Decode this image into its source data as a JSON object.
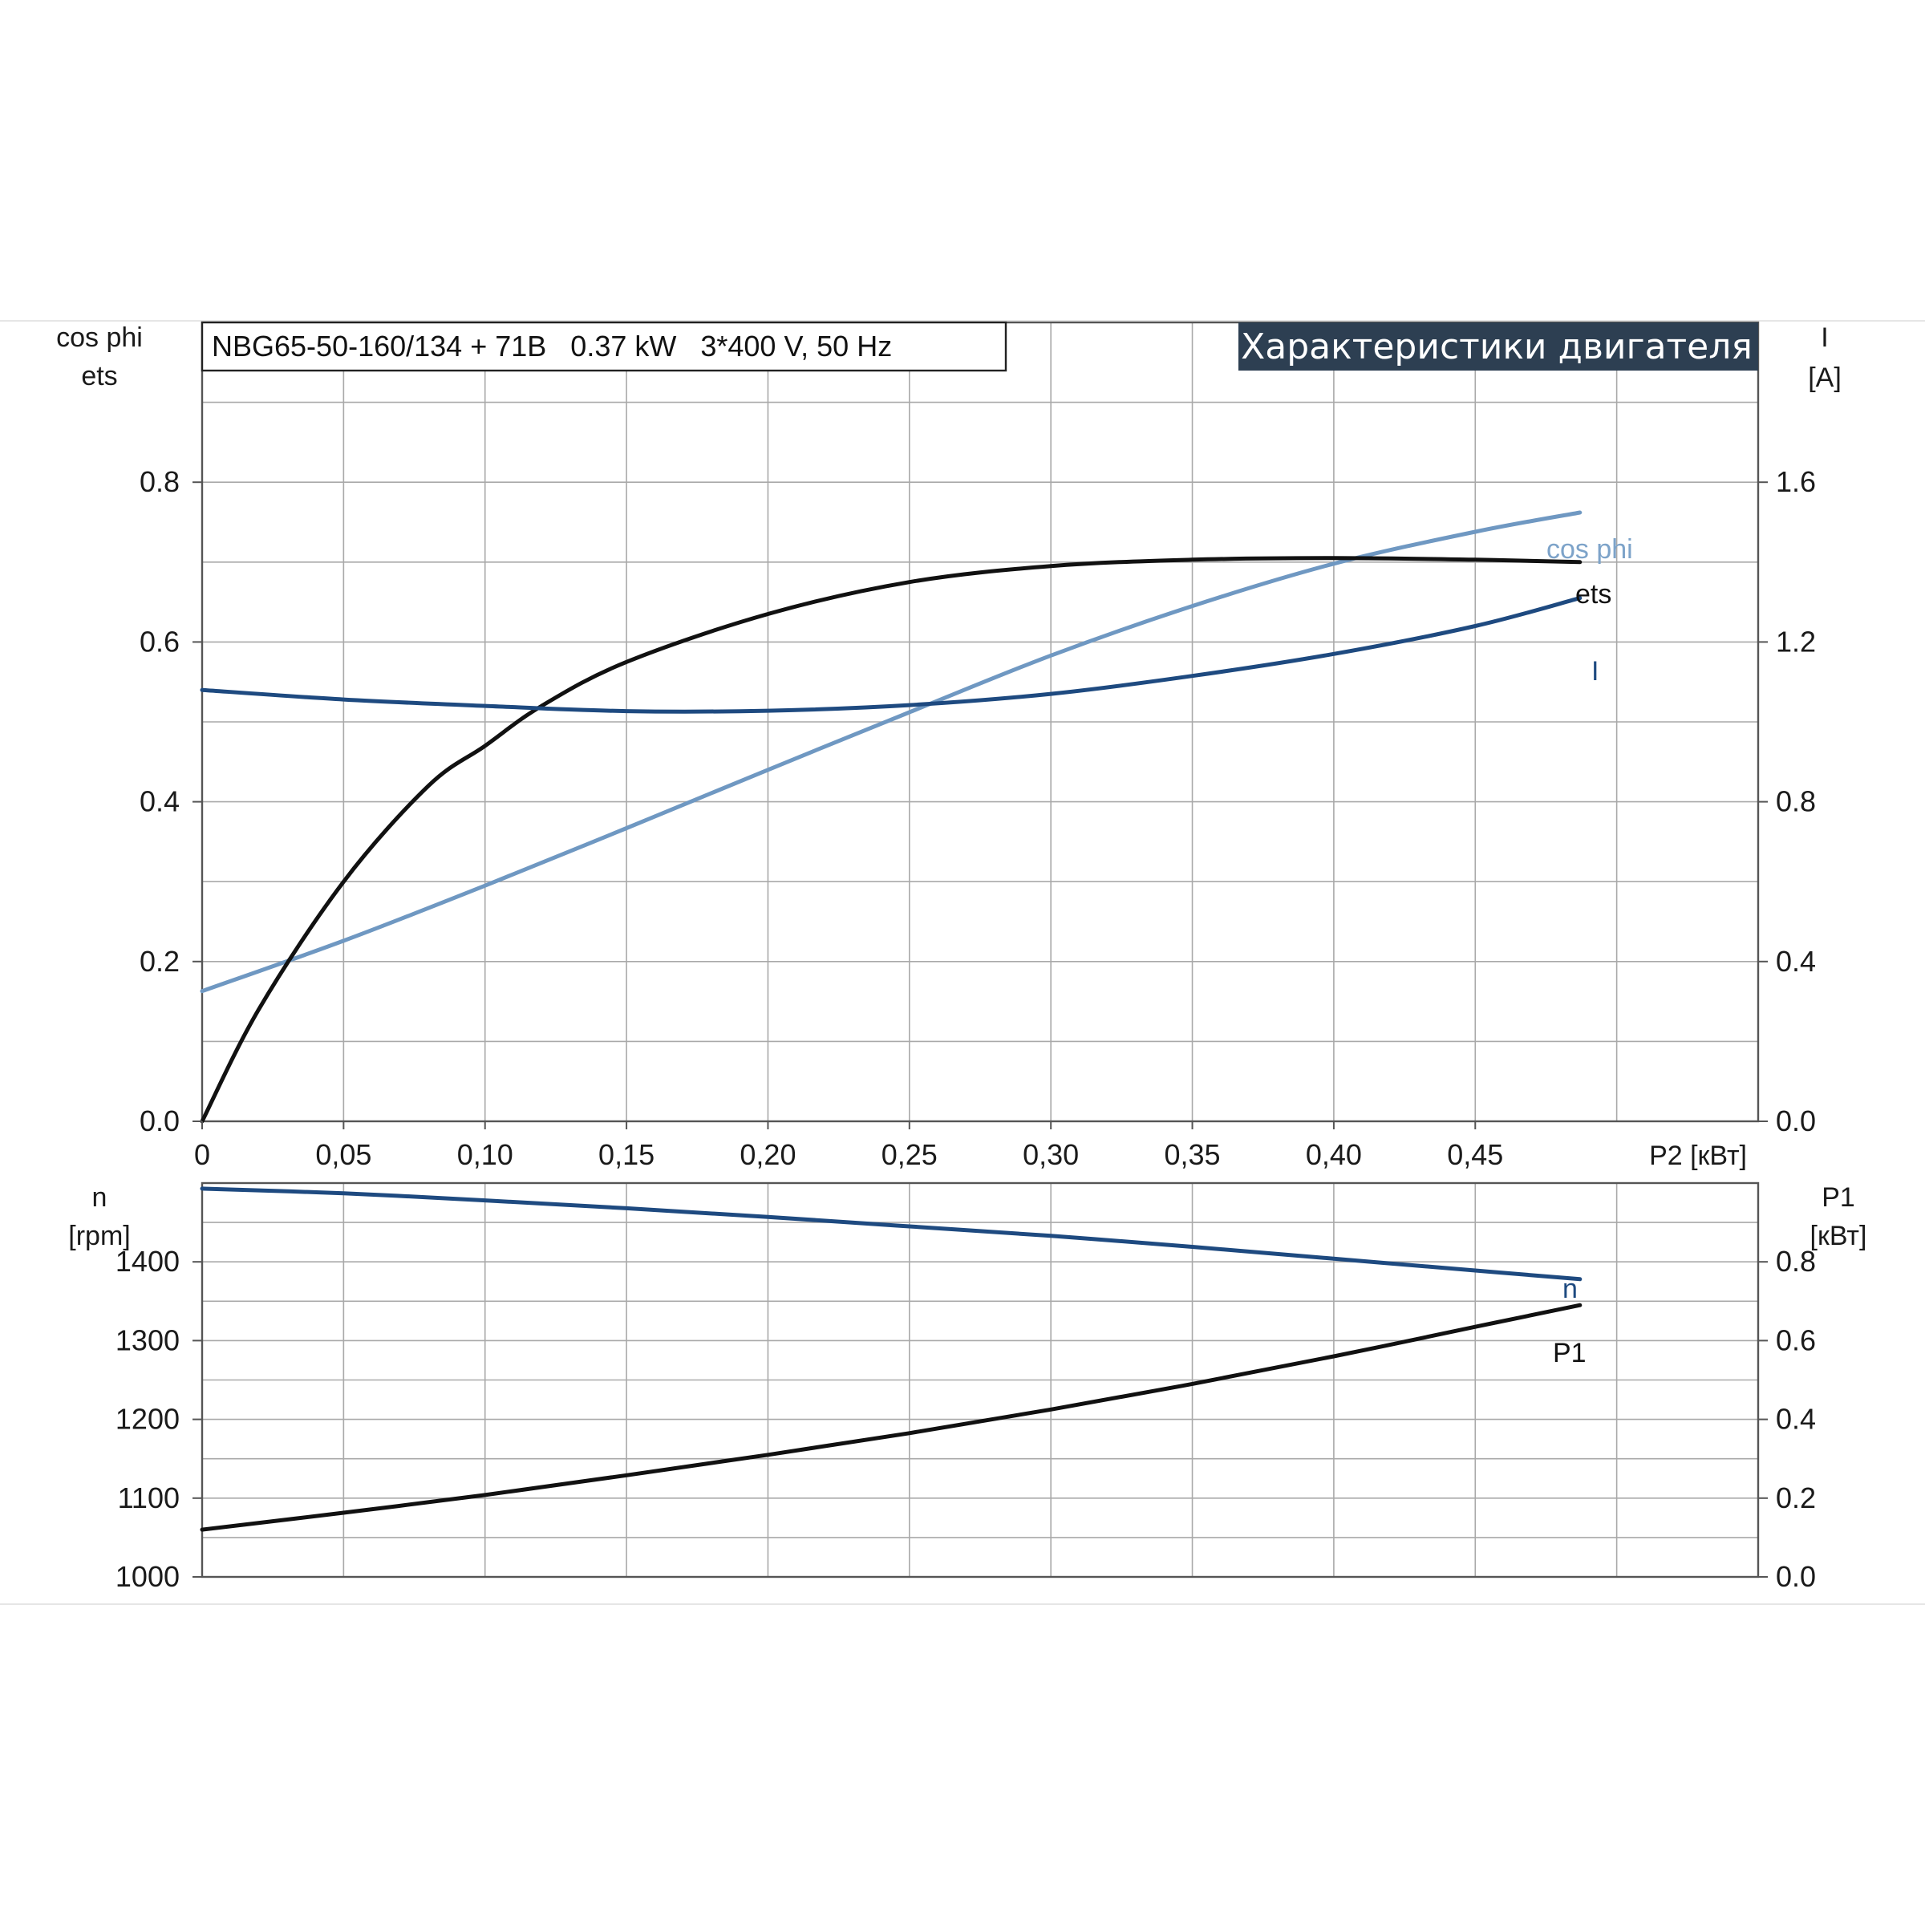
{
  "model_label": "NBG65-50-160/134 + 71B   0.37 kW   3*400 V, 50 Hz",
  "title": "Характеристики двигателя",
  "chart_data": [
    {
      "type": "line",
      "panel": "top",
      "xlabel": "P2 [кВт]",
      "x_ticks": [
        "0",
        "0,05",
        "0,10",
        "0,15",
        "0,20",
        "0,25",
        "0,30",
        "0,35",
        "0,40",
        "0,45"
      ],
      "xlim": [
        0,
        0.55
      ],
      "ylabel_left": [
        "cos phi",
        "ets"
      ],
      "ylim_left": [
        0,
        1.0
      ],
      "y_ticks_left": [
        "0.0",
        "0.2",
        "0.4",
        "0.6",
        "0.8"
      ],
      "ylabel_right": [
        "I",
        "[A]"
      ],
      "ylim_right": [
        0,
        2.0
      ],
      "y_ticks_right": [
        "0.0",
        "0.4",
        "0.8",
        "1.2",
        "1.6"
      ],
      "grid": true,
      "series": [
        {
          "name": "cos phi",
          "axis": "left",
          "color": "#6f98c2",
          "x": [
            0,
            0.05,
            0.1,
            0.15,
            0.2,
            0.25,
            0.3,
            0.35,
            0.4,
            0.45,
            0.487
          ],
          "y": [
            0.163,
            0.226,
            0.295,
            0.367,
            0.44,
            0.512,
            0.583,
            0.645,
            0.698,
            0.738,
            0.762
          ]
        },
        {
          "name": "ets",
          "axis": "left",
          "color": "#111111",
          "x": [
            0,
            0.02,
            0.05,
            0.08,
            0.1,
            0.12,
            0.15,
            0.2,
            0.25,
            0.3,
            0.35,
            0.4,
            0.45,
            0.487
          ],
          "y": [
            0.0,
            0.14,
            0.3,
            0.42,
            0.47,
            0.52,
            0.575,
            0.635,
            0.675,
            0.695,
            0.703,
            0.705,
            0.703,
            0.7
          ]
        },
        {
          "name": "I",
          "axis": "right",
          "color": "#1e4a80",
          "x": [
            0,
            0.05,
            0.1,
            0.15,
            0.2,
            0.25,
            0.3,
            0.35,
            0.4,
            0.45,
            0.487
          ],
          "y": [
            1.08,
            1.056,
            1.04,
            1.027,
            1.028,
            1.042,
            1.07,
            1.115,
            1.17,
            1.24,
            1.31
          ]
        }
      ]
    },
    {
      "type": "line",
      "panel": "bottom",
      "xlim": [
        0,
        0.55
      ],
      "ylabel_left": [
        "n",
        "[rpm]"
      ],
      "ylim_left": [
        1000,
        1500
      ],
      "y_ticks_left": [
        "1000",
        "1100",
        "1200",
        "1300",
        "1400"
      ],
      "ylabel_right": [
        "P1",
        "[кВт]"
      ],
      "ylim_right": [
        0,
        1.0
      ],
      "y_ticks_right": [
        "0.0",
        "0.2",
        "0.4",
        "0.6",
        "0.8"
      ],
      "grid": true,
      "series": [
        {
          "name": "n",
          "axis": "left",
          "color": "#1e4a80",
          "x": [
            0,
            0.05,
            0.1,
            0.15,
            0.2,
            0.25,
            0.3,
            0.35,
            0.4,
            0.45,
            0.487
          ],
          "y": [
            1493,
            1487,
            1478,
            1468,
            1457,
            1445,
            1433,
            1419,
            1404,
            1389,
            1378
          ]
        },
        {
          "name": "P1",
          "axis": "right",
          "color": "#111111",
          "x": [
            0,
            0.05,
            0.1,
            0.15,
            0.2,
            0.25,
            0.3,
            0.35,
            0.4,
            0.45,
            0.487
          ],
          "y": [
            0.12,
            0.163,
            0.208,
            0.258,
            0.31,
            0.365,
            0.425,
            0.49,
            0.56,
            0.635,
            0.69
          ]
        }
      ]
    }
  ]
}
